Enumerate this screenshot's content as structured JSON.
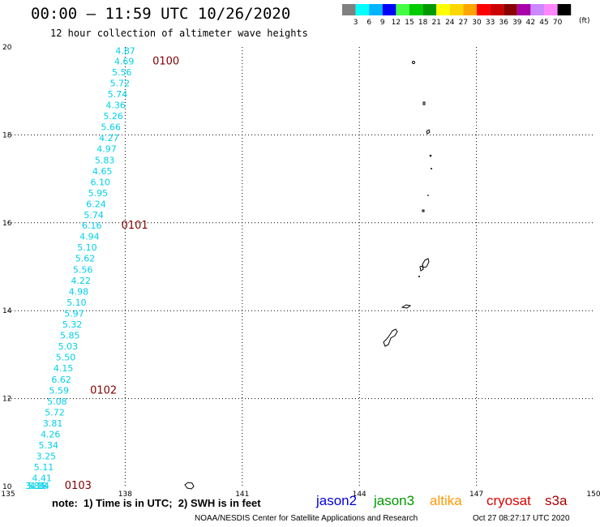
{
  "header": {
    "title": "00:00 — 11:59 UTC 10/26/2020",
    "subtitle": "12 hour collection of altimeter wave heights"
  },
  "legend": {
    "unit": "(ft)",
    "bins": [
      {
        "label": "3",
        "color": "#808080"
      },
      {
        "label": "6",
        "color": "#00ffff"
      },
      {
        "label": "9",
        "color": "#00b4ff"
      },
      {
        "label": "12",
        "color": "#0000ff"
      },
      {
        "label": "15",
        "color": "#44ff44"
      },
      {
        "label": "18",
        "color": "#00cc00"
      },
      {
        "label": "21",
        "color": "#009900"
      },
      {
        "label": "24",
        "color": "#ffff00"
      },
      {
        "label": "27",
        "color": "#ffd700"
      },
      {
        "label": "30",
        "color": "#ffa500"
      },
      {
        "label": "33",
        "color": "#ff0000"
      },
      {
        "label": "36",
        "color": "#cc0000"
      },
      {
        "label": "39",
        "color": "#880000"
      },
      {
        "label": "42",
        "color": "#aa00aa"
      },
      {
        "label": "45",
        "color": "#cc88ff"
      },
      {
        "label": "70",
        "color": "#ff88ff"
      },
      {
        "label": "",
        "color": "#000000"
      }
    ]
  },
  "map": {
    "lon_range": [
      135,
      150
    ],
    "lat_range": [
      10,
      20
    ],
    "lon_ticks": [
      "135",
      "138",
      "141",
      "144",
      "147",
      "150"
    ],
    "lat_ticks": [
      "20",
      "18",
      "16",
      "14",
      "12",
      "10"
    ],
    "grid_color": "#000000",
    "track_color": "#00d0e8",
    "time_color": "#800000",
    "measurements": [
      {
        "lat": 19.92,
        "lon": 137.75,
        "value": "4.87"
      },
      {
        "lat": 19.68,
        "lon": 137.72,
        "value": "4.69"
      },
      {
        "lat": 19.43,
        "lon": 137.66,
        "value": "5.56"
      },
      {
        "lat": 19.18,
        "lon": 137.61,
        "value": "5.72"
      },
      {
        "lat": 18.93,
        "lon": 137.55,
        "value": "5.74"
      },
      {
        "lat": 18.68,
        "lon": 137.5,
        "value": "4.36"
      },
      {
        "lat": 18.43,
        "lon": 137.44,
        "value": "5.26"
      },
      {
        "lat": 18.18,
        "lon": 137.38,
        "value": "5.66"
      },
      {
        "lat": 17.93,
        "lon": 137.33,
        "value": "4.27"
      },
      {
        "lat": 17.68,
        "lon": 137.27,
        "value": "4.97"
      },
      {
        "lat": 17.43,
        "lon": 137.22,
        "value": "5.83"
      },
      {
        "lat": 17.18,
        "lon": 137.16,
        "value": "4.65"
      },
      {
        "lat": 16.93,
        "lon": 137.11,
        "value": "6.10"
      },
      {
        "lat": 16.68,
        "lon": 137.05,
        "value": "5.95"
      },
      {
        "lat": 16.43,
        "lon": 137.0,
        "value": "6.24"
      },
      {
        "lat": 16.18,
        "lon": 136.94,
        "value": "5.74"
      },
      {
        "lat": 15.94,
        "lon": 136.89,
        "value": "6.16"
      },
      {
        "lat": 15.69,
        "lon": 136.83,
        "value": "4.94"
      },
      {
        "lat": 15.44,
        "lon": 136.77,
        "value": "5.10"
      },
      {
        "lat": 15.19,
        "lon": 136.72,
        "value": "5.62"
      },
      {
        "lat": 14.94,
        "lon": 136.66,
        "value": "5.56"
      },
      {
        "lat": 14.69,
        "lon": 136.61,
        "value": "4.22"
      },
      {
        "lat": 14.44,
        "lon": 136.55,
        "value": "4.98"
      },
      {
        "lat": 14.19,
        "lon": 136.5,
        "value": "5.10"
      },
      {
        "lat": 13.94,
        "lon": 136.44,
        "value": "5.97"
      },
      {
        "lat": 13.69,
        "lon": 136.39,
        "value": "5.32"
      },
      {
        "lat": 13.44,
        "lon": 136.33,
        "value": "5.85"
      },
      {
        "lat": 13.19,
        "lon": 136.28,
        "value": "5.03"
      },
      {
        "lat": 12.94,
        "lon": 136.22,
        "value": "5.50"
      },
      {
        "lat": 12.69,
        "lon": 136.16,
        "value": "4.15"
      },
      {
        "lat": 12.44,
        "lon": 136.11,
        "value": "6.62"
      },
      {
        "lat": 12.19,
        "lon": 136.05,
        "value": "5.59"
      },
      {
        "lat": 11.94,
        "lon": 136.0,
        "value": "5.08"
      },
      {
        "lat": 11.69,
        "lon": 135.94,
        "value": "5.72"
      },
      {
        "lat": 11.44,
        "lon": 135.89,
        "value": "3.81"
      },
      {
        "lat": 11.19,
        "lon": 135.83,
        "value": "4.26"
      },
      {
        "lat": 10.94,
        "lon": 135.78,
        "value": "5.34"
      },
      {
        "lat": 10.69,
        "lon": 135.72,
        "value": "3.25"
      },
      {
        "lat": 10.44,
        "lon": 135.66,
        "value": "5.11"
      },
      {
        "lat": 10.19,
        "lon": 135.61,
        "value": "4.41"
      },
      {
        "lat": 9.94,
        "lon": 135.55,
        "value": "4.34"
      },
      {
        "lat": 9.69,
        "lon": 135.5,
        "value": "5.18"
      },
      {
        "lat": 9.44,
        "lon": 135.44,
        "value": "3.86"
      }
    ],
    "time_labels": [
      {
        "lat": 19.68,
        "lon": 138.7,
        "text": "0100"
      },
      {
        "lat": 15.94,
        "lon": 137.9,
        "text": "0101"
      },
      {
        "lat": 12.19,
        "lon": 137.1,
        "text": "0102"
      },
      {
        "lat": 9.44,
        "lon": 136.45,
        "text": "0103"
      }
    ]
  },
  "footer": {
    "note": "note:  1) Time is in UTC;  2) SWH is in feet",
    "credit": "NOAA/NESDIS Center for Satellite Applications and Research",
    "generated": "Oct 27 08:27:17 UTC 2020",
    "satellites": [
      {
        "name": "jason2",
        "color": "#0000dd"
      },
      {
        "name": "jason3",
        "color": "#009900"
      },
      {
        "name": "altika",
        "color": "#ff9900"
      },
      {
        "name": "cryosat",
        "color": "#dd0000"
      },
      {
        "name": "s3a",
        "color": "#aa0000"
      }
    ]
  }
}
